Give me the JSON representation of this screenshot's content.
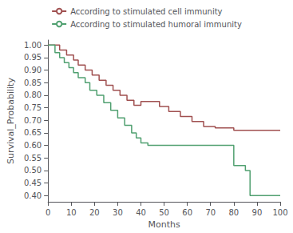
{
  "chart_data": {
    "type": "step",
    "xlabel": "Months",
    "ylabel": "Survival_Probability",
    "xlim": [
      0,
      100
    ],
    "xticks": [
      0,
      10,
      20,
      30,
      40,
      50,
      60,
      70,
      80,
      90,
      100
    ],
    "ylim": [
      0.375,
      1.02
    ],
    "yticks": [
      {
        "value": 0.4,
        "label": "0.40"
      },
      0.45,
      {
        "value": 0.5,
        "label": "0.50"
      },
      0.55,
      {
        "value": 0.6,
        "label": "0.60"
      },
      0.65,
      {
        "value": 0.7,
        "label": "0.70"
      },
      0.75,
      {
        "value": 0.8,
        "label": "0.80"
      },
      0.85,
      {
        "value": 0.9,
        "label": "0.90"
      },
      0.95,
      {
        "value": 1.0,
        "label": "1.00"
      }
    ],
    "grid": false,
    "legend": "top",
    "series": [
      {
        "name": "According to stimulated cell immunity",
        "color": "#a05050",
        "x": [
          0,
          5,
          8,
          11,
          13,
          16,
          19,
          22,
          25,
          28,
          31,
          34,
          37,
          40,
          43,
          46,
          48,
          52,
          57,
          62,
          67,
          72,
          80,
          85,
          92,
          100
        ],
        "values": [
          1.0,
          0.98,
          0.96,
          0.94,
          0.92,
          0.9,
          0.88,
          0.86,
          0.84,
          0.82,
          0.8,
          0.78,
          0.76,
          0.775,
          0.775,
          0.775,
          0.755,
          0.735,
          0.715,
          0.695,
          0.675,
          0.67,
          0.66,
          0.66,
          0.66,
          0.66
        ]
      },
      {
        "name": "According to stimulated humoral immunity",
        "color": "#50a070",
        "x": [
          0,
          3,
          5,
          7,
          9,
          11,
          13,
          16,
          18,
          21,
          24,
          27,
          30,
          33,
          36,
          38,
          40,
          43,
          46,
          50,
          75,
          80,
          85,
          87,
          92,
          100
        ],
        "values": [
          1.0,
          0.97,
          0.95,
          0.93,
          0.91,
          0.89,
          0.87,
          0.85,
          0.82,
          0.8,
          0.77,
          0.74,
          0.71,
          0.68,
          0.65,
          0.63,
          0.61,
          0.6,
          0.6,
          0.6,
          0.6,
          0.52,
          0.5,
          0.4,
          0.4,
          0.4
        ]
      }
    ]
  }
}
